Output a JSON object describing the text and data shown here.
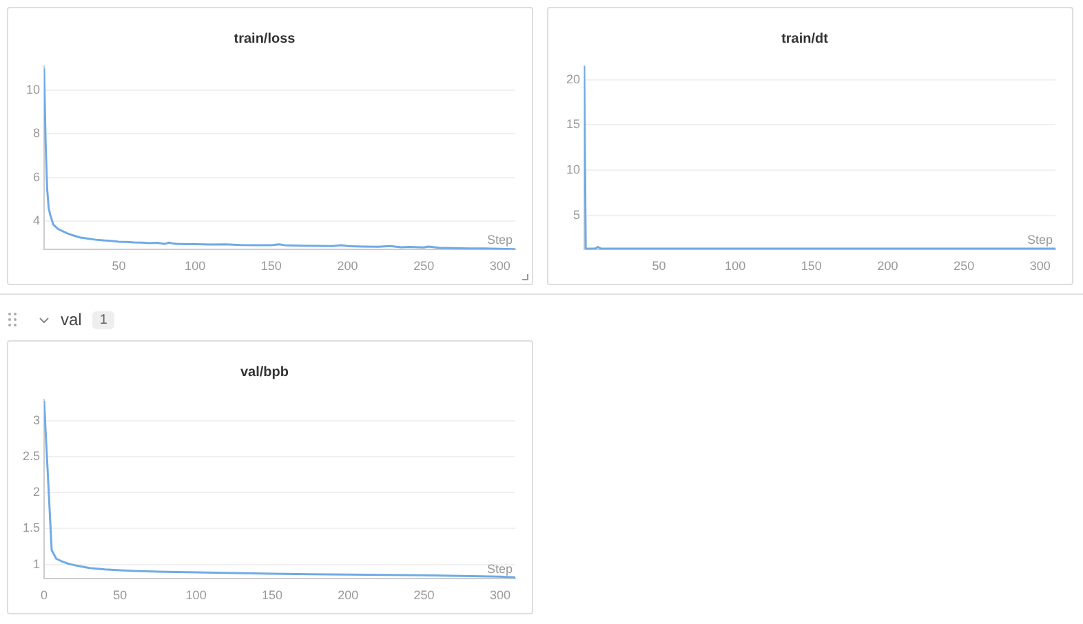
{
  "chart_data": [
    {
      "type": "line",
      "title": "train/loss",
      "xlabel": "Step",
      "x": [
        1,
        2,
        3,
        4,
        5,
        7,
        10,
        13,
        16,
        20,
        25,
        30,
        35,
        40,
        45,
        50,
        55,
        60,
        65,
        70,
        75,
        80,
        83,
        86,
        90,
        95,
        100,
        110,
        120,
        130,
        140,
        150,
        155,
        160,
        170,
        180,
        190,
        196,
        200,
        210,
        220,
        228,
        235,
        240,
        250,
        253,
        260,
        270,
        280,
        290,
        300,
        310
      ],
      "series": [
        {
          "color": "#6faae6",
          "values": [
            11.0,
            7.6,
            5.5,
            4.6,
            4.3,
            3.85,
            3.65,
            3.55,
            3.45,
            3.35,
            3.25,
            3.2,
            3.15,
            3.12,
            3.1,
            3.06,
            3.05,
            3.03,
            3.02,
            3.0,
            3.01,
            2.96,
            3.02,
            2.97,
            2.96,
            2.95,
            2.95,
            2.93,
            2.94,
            2.91,
            2.9,
            2.9,
            2.94,
            2.89,
            2.88,
            2.87,
            2.86,
            2.9,
            2.86,
            2.84,
            2.83,
            2.86,
            2.81,
            2.82,
            2.8,
            2.84,
            2.78,
            2.77,
            2.75,
            2.75,
            2.74,
            2.72
          ]
        }
      ],
      "xlim": [
        1,
        310
      ],
      "xticks": [
        50,
        100,
        150,
        200,
        250,
        300
      ],
      "ylim": [
        2.7,
        11.1
      ],
      "yticks": [
        4,
        6,
        8,
        10
      ],
      "grid": "y"
    },
    {
      "type": "line",
      "title": "train/dt",
      "xlabel": "Step",
      "x": [
        1,
        2,
        5,
        8,
        10,
        12,
        20,
        50,
        100,
        150,
        200,
        250,
        300,
        310
      ],
      "series": [
        {
          "color": "#6faae6",
          "values": [
            21.5,
            1.3,
            1.3,
            1.3,
            1.5,
            1.3,
            1.3,
            1.3,
            1.3,
            1.3,
            1.3,
            1.3,
            1.3,
            1.3
          ]
        }
      ],
      "xlim": [
        1,
        310
      ],
      "xticks": [
        50,
        100,
        150,
        200,
        250,
        300
      ],
      "ylim": [
        1.2,
        21.5
      ],
      "yticks": [
        5,
        10,
        15,
        20
      ],
      "grid": "y"
    },
    {
      "type": "line",
      "title": "val/bpb",
      "xlabel": "Step",
      "annotations": [
        "val",
        "1"
      ],
      "x": [
        0,
        5,
        8,
        12,
        16,
        20,
        25,
        30,
        40,
        50,
        60,
        75,
        100,
        125,
        150,
        175,
        200,
        225,
        250,
        275,
        300,
        310
      ],
      "series": [
        {
          "color": "#6faae6",
          "values": [
            3.28,
            1.2,
            1.08,
            1.04,
            1.01,
            0.99,
            0.97,
            0.95,
            0.93,
            0.92,
            0.91,
            0.9,
            0.89,
            0.88,
            0.87,
            0.865,
            0.86,
            0.855,
            0.85,
            0.84,
            0.83,
            0.82
          ]
        }
      ],
      "xlim": [
        0,
        310
      ],
      "xticks": [
        0,
        50,
        100,
        150,
        200,
        250,
        300
      ],
      "ylim": [
        0.8,
        3.3
      ],
      "yticks": [
        1,
        1.5,
        2,
        2.5,
        3
      ],
      "grid": "y"
    }
  ]
}
